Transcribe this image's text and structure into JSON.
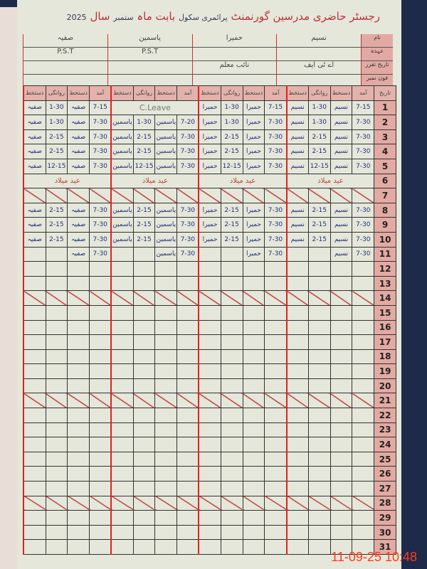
{
  "register": {
    "title": "رجسٹر حاضری مدرسین گورنمنٹ",
    "school": "پرائمری سکول",
    "month_label": "بابت ماہ",
    "month": "ستمبر",
    "year_label": "سال",
    "year": "2025",
    "info_labels": [
      "نام",
      "عہدہ",
      "تاریخ تقرر",
      "فون نمبر"
    ],
    "teachers": [
      {
        "name": "نسیم",
        "designation": "",
        "qualification": "اے ٹی ایف"
      },
      {
        "name": "حمیرا",
        "designation": "",
        "qualification": "نائب معلم"
      },
      {
        "name": "یاسمین",
        "designation": "P.S.T",
        "qualification": ""
      },
      {
        "name": "صفیہ",
        "designation": "P.S.T",
        "qualification": ""
      }
    ],
    "col_headers": [
      "آمد",
      "دستخط",
      "روانگی",
      "دستخط"
    ],
    "date_header": "تاریخ"
  },
  "rows": [
    {
      "d": "1",
      "t": [
        [
          "7-15",
          "نسیم",
          "1-30",
          "نسیم"
        ],
        [
          "7-15",
          "حمیرا",
          "1-30",
          "حمیرا"
        ],
        [
          "C.Leave"
        ],
        [
          "7-15",
          "صفیہ",
          "1-30",
          "صفیہ"
        ]
      ]
    },
    {
      "d": "2",
      "t": [
        [
          "7-30",
          "نسیم",
          "1-30",
          "نسیم"
        ],
        [
          "7-30",
          "حمیرا",
          "1-30",
          "حمیرا"
        ],
        [
          "7-20",
          "یاسمین",
          "1-30",
          "یاسمین"
        ],
        [
          "7-30",
          "صفیہ",
          "1-30",
          "صفیہ"
        ]
      ]
    },
    {
      "d": "3",
      "t": [
        [
          "7-30",
          "نسیم",
          "2-15",
          "نسیم"
        ],
        [
          "7-30",
          "حمیرا",
          "2-15",
          "حمیرا"
        ],
        [
          "7-30",
          "یاسمین",
          "2-15",
          "یاسمین"
        ],
        [
          "7-30",
          "صفیہ",
          "2-15",
          "صفیہ"
        ]
      ]
    },
    {
      "d": "4",
      "t": [
        [
          "7-30",
          "نسیم",
          "2-15",
          "نسیم"
        ],
        [
          "7-30",
          "حمیرا",
          "2-15",
          "حمیرا"
        ],
        [
          "7-30",
          "یاسمین",
          "2-15",
          "یاسمین"
        ],
        [
          "7-30",
          "صفیہ",
          "2-15",
          "صفیہ"
        ]
      ]
    },
    {
      "d": "5",
      "t": [
        [
          "7-30",
          "نسیم",
          "12-15",
          "نسیم"
        ],
        [
          "7-30",
          "حمیرا",
          "12-15",
          "حمیرا"
        ],
        [
          "7-30",
          "یاسمین",
          "12-15",
          "یاسمین"
        ],
        [
          "7-30",
          "صفیہ",
          "12-15",
          "صفیہ"
        ]
      ]
    },
    {
      "d": "6",
      "holiday": [
        "عید میلاد",
        "عید میلاد",
        "عید میلاد",
        "عید میلاد"
      ]
    },
    {
      "d": "7",
      "sunday": true
    },
    {
      "d": "8",
      "t": [
        [
          "7-30",
          "نسیم",
          "2-15",
          "نسیم"
        ],
        [
          "7-30",
          "حمیرا",
          "2-15",
          "حمیرا"
        ],
        [
          "7-30",
          "یاسمین",
          "2-15",
          "یاسمین"
        ],
        [
          "7-30",
          "صفیہ",
          "2-15",
          "صفیہ"
        ]
      ]
    },
    {
      "d": "9",
      "t": [
        [
          "7-30",
          "نسیم",
          "2-15",
          "نسیم"
        ],
        [
          "7-30",
          "حمیرا",
          "2-15",
          "حمیرا"
        ],
        [
          "7-30",
          "یاسمین",
          "2-15",
          "یاسمین"
        ],
        [
          "7-30",
          "صفیہ",
          "2-15",
          "صفیہ"
        ]
      ]
    },
    {
      "d": "10",
      "t": [
        [
          "7-30",
          "نسیم",
          "2-15",
          "نسیم"
        ],
        [
          "7-30",
          "حمیرا",
          "2-15",
          "حمیرا"
        ],
        [
          "7-30",
          "یاسمین",
          "2-15",
          "یاسمین"
        ],
        [
          "7-30",
          "صفیہ",
          "2-15",
          "صفیہ"
        ]
      ]
    },
    {
      "d": "11",
      "t": [
        [
          "7-30",
          "نسیم",
          "",
          ""
        ],
        [
          "7-30",
          "حمیرا",
          "",
          ""
        ],
        [
          "7-30",
          "یاسمین",
          "",
          ""
        ],
        [
          "7-30",
          "صفیہ",
          "",
          ""
        ]
      ]
    },
    {
      "d": "12"
    },
    {
      "d": "13"
    },
    {
      "d": "14",
      "sunday": true
    },
    {
      "d": "15"
    },
    {
      "d": "16"
    },
    {
      "d": "17"
    },
    {
      "d": "18"
    },
    {
      "d": "19"
    },
    {
      "d": "20"
    },
    {
      "d": "21",
      "sunday": true
    },
    {
      "d": "22"
    },
    {
      "d": "23"
    },
    {
      "d": "24"
    },
    {
      "d": "25"
    },
    {
      "d": "26"
    },
    {
      "d": "27"
    },
    {
      "d": "28",
      "sunday": true
    },
    {
      "d": "29"
    },
    {
      "d": "30"
    },
    {
      "d": "31"
    }
  ],
  "camera_timestamp": "11-09-25  10:48"
}
